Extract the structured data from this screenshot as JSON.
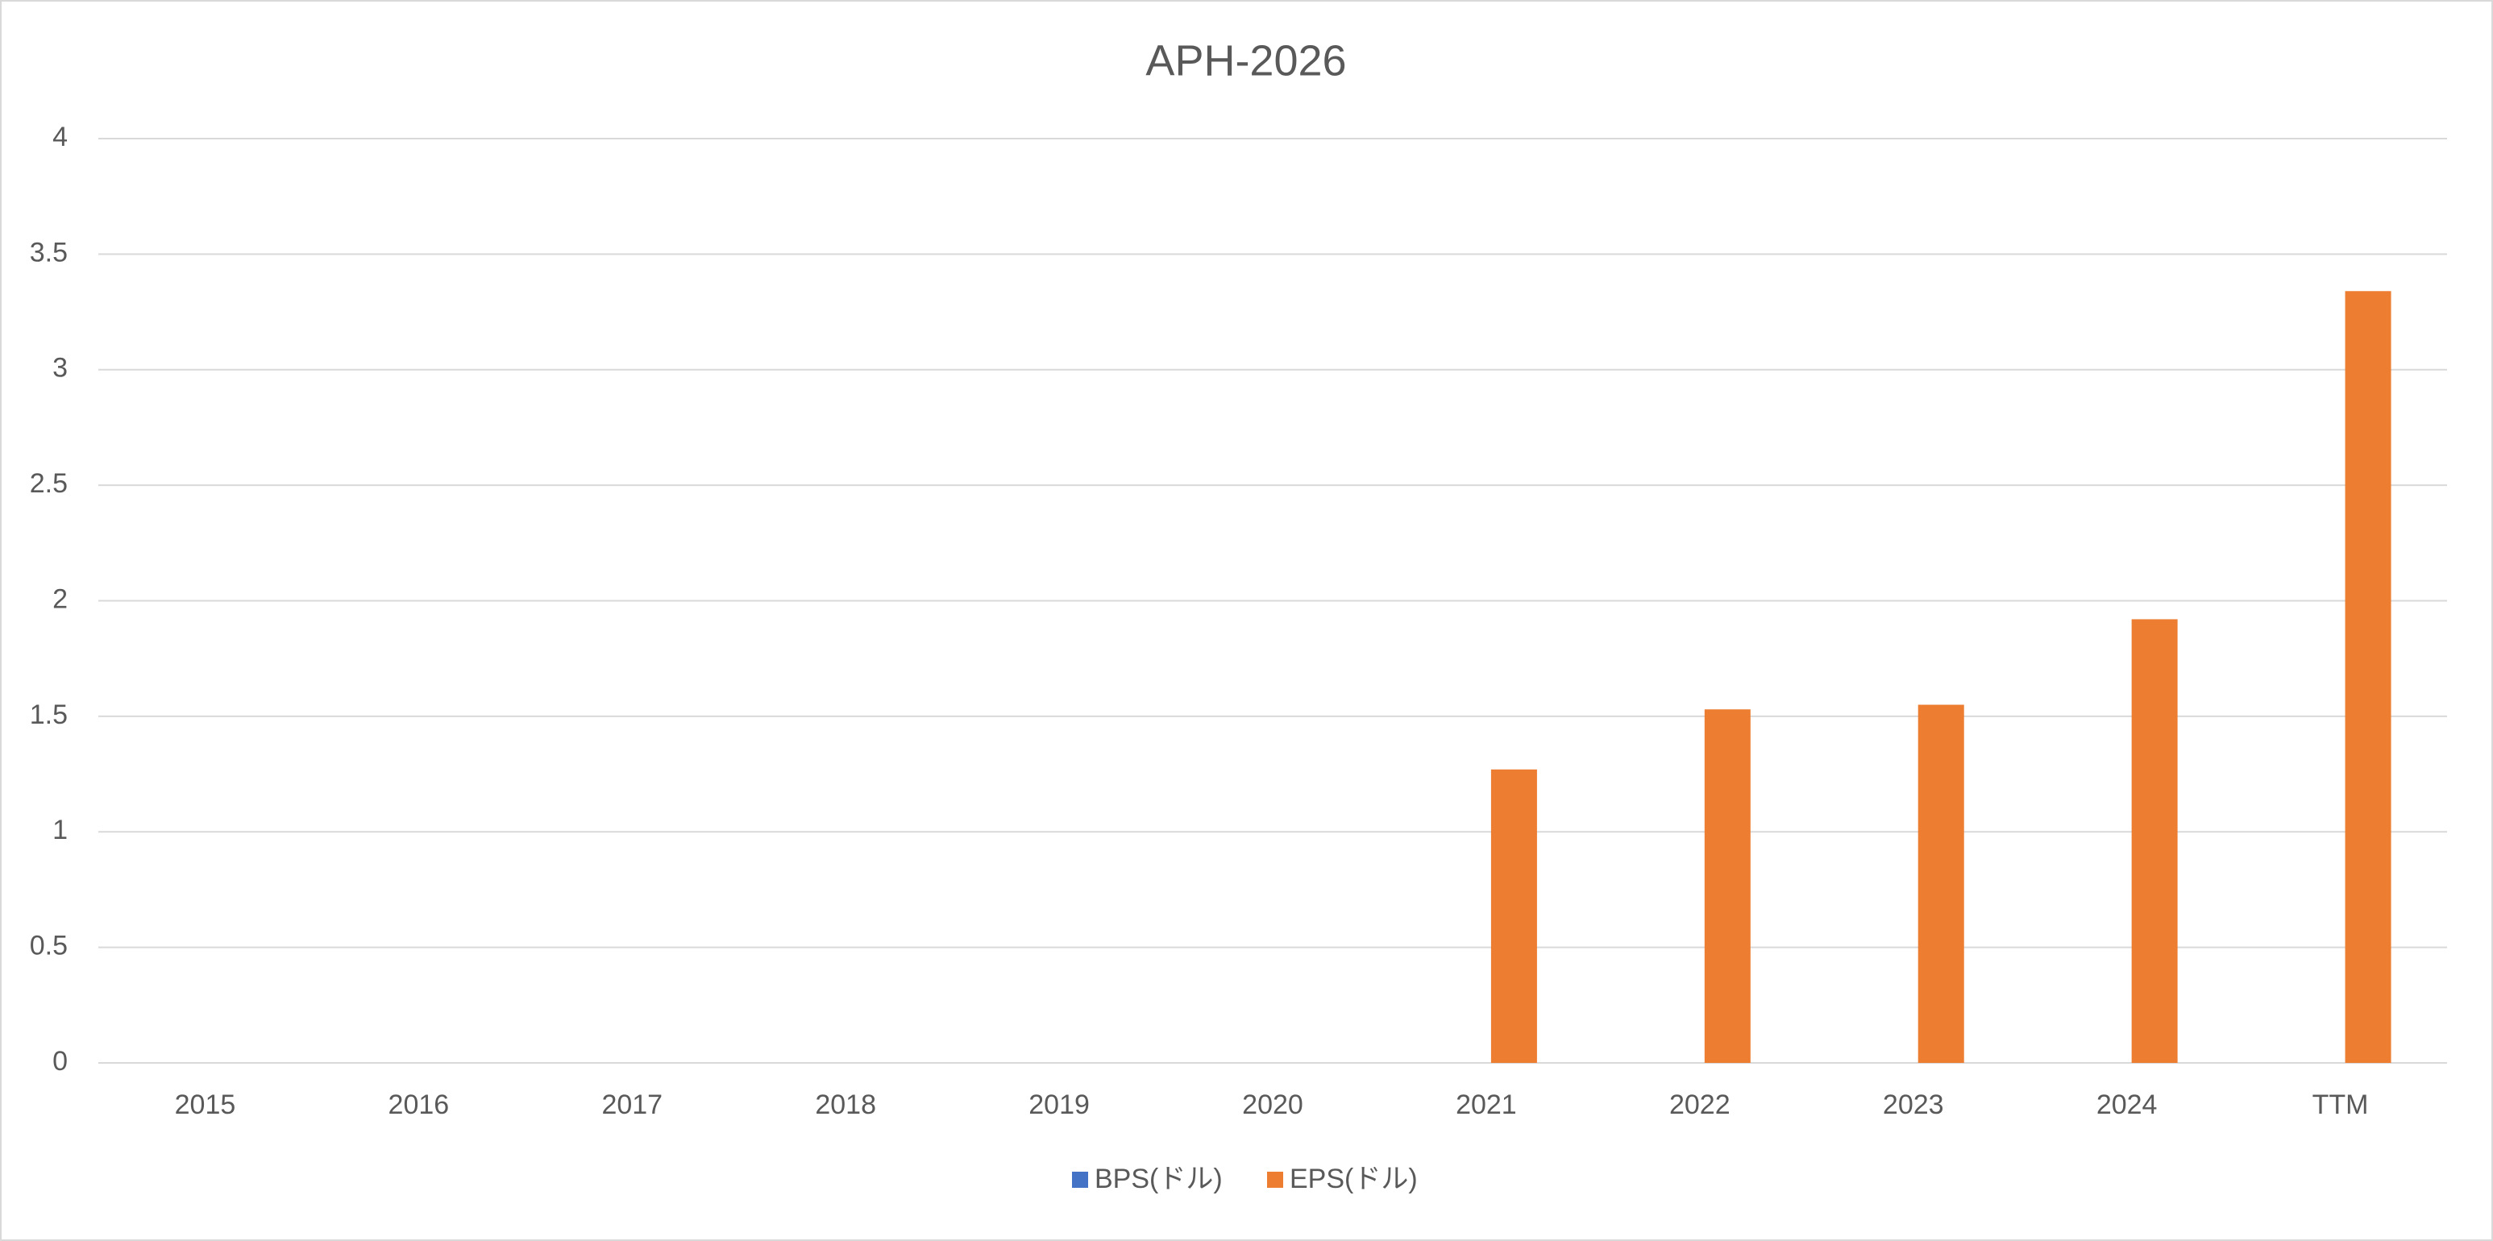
{
  "chart_data": {
    "type": "bar",
    "title": "APH-2026",
    "categories": [
      "2015",
      "2016",
      "2017",
      "2018",
      "2019",
      "2020",
      "2021",
      "2022",
      "2023",
      "2024",
      "TTM"
    ],
    "series": [
      {
        "name": "BPS(ドル)",
        "color": "#4472c4",
        "values": [
          null,
          null,
          null,
          null,
          null,
          null,
          null,
          null,
          null,
          null,
          null
        ]
      },
      {
        "name": "EPS(ドル)",
        "color": "#ed7d31",
        "values": [
          null,
          null,
          null,
          null,
          null,
          null,
          1.27,
          1.53,
          1.55,
          1.92,
          3.34
        ]
      }
    ],
    "ylim": [
      0,
      4
    ],
    "yticks": [
      0,
      0.5,
      1,
      1.5,
      2,
      2.5,
      3,
      3.5,
      4
    ],
    "grid": true,
    "legend": "bottom"
  }
}
